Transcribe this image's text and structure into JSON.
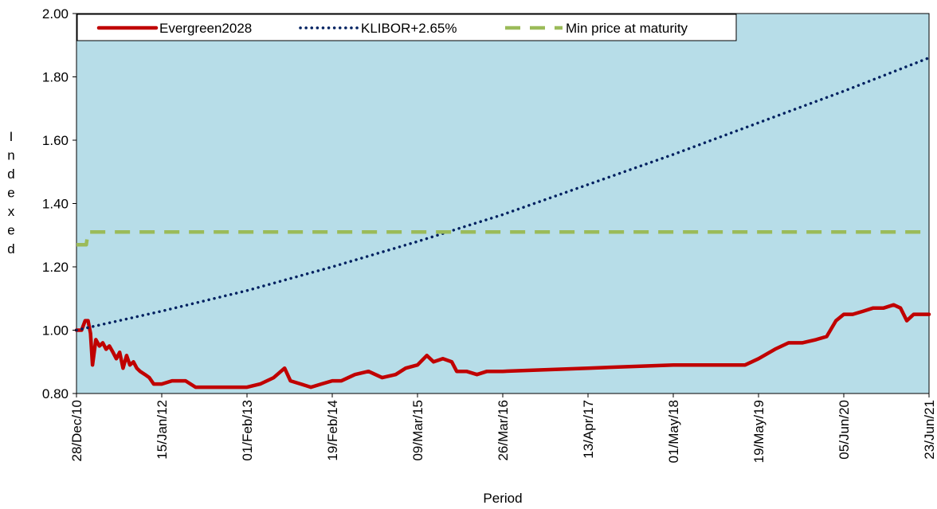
{
  "chart_data": {
    "type": "line",
    "ylabel": "Indexed",
    "xlabel": "Period",
    "ylim": [
      0.8,
      2.0
    ],
    "yticks": [
      "0.80",
      "1.00",
      "1.20",
      "1.40",
      "1.60",
      "1.80",
      "2.00"
    ],
    "xlim": [
      "2010-12-28",
      "2021-06-23"
    ],
    "xticks": [
      {
        "date": "2010-12-28",
        "label": "28/Dec/10"
      },
      {
        "date": "2012-01-15",
        "label": "15/Jan/12"
      },
      {
        "date": "2013-02-01",
        "label": "01/Feb/13"
      },
      {
        "date": "2014-02-19",
        "label": "19/Feb/14"
      },
      {
        "date": "2015-03-09",
        "label": "09/Mar/15"
      },
      {
        "date": "2016-03-26",
        "label": "26/Mar/16"
      },
      {
        "date": "2017-04-13",
        "label": "13/Apr/17"
      },
      {
        "date": "2018-05-01",
        "label": "01/May/18"
      },
      {
        "date": "2019-05-19",
        "label": "19/May/19"
      },
      {
        "date": "2020-06-05",
        "label": "05/Jun/20"
      },
      {
        "date": "2021-06-23",
        "label": "23/Jun/21"
      }
    ],
    "grid": false,
    "background_color": "#b7dde8",
    "legend_position": "top",
    "series": [
      {
        "name": "Evergreen2028",
        "color": "#c00000",
        "style": "solid",
        "points": [
          [
            "2010-12-28",
            1.0
          ],
          [
            "2011-01-20",
            1.0
          ],
          [
            "2011-02-05",
            1.03
          ],
          [
            "2011-02-18",
            1.03
          ],
          [
            "2011-03-01",
            0.99
          ],
          [
            "2011-03-10",
            0.89
          ],
          [
            "2011-03-25",
            0.97
          ],
          [
            "2011-04-10",
            0.95
          ],
          [
            "2011-04-25",
            0.96
          ],
          [
            "2011-05-10",
            0.94
          ],
          [
            "2011-05-25",
            0.95
          ],
          [
            "2011-06-10",
            0.93
          ],
          [
            "2011-06-25",
            0.91
          ],
          [
            "2011-07-10",
            0.93
          ],
          [
            "2011-07-25",
            0.88
          ],
          [
            "2011-08-10",
            0.92
          ],
          [
            "2011-08-25",
            0.89
          ],
          [
            "2011-09-10",
            0.9
          ],
          [
            "2011-09-25",
            0.88
          ],
          [
            "2011-10-10",
            0.87
          ],
          [
            "2011-11-01",
            0.86
          ],
          [
            "2011-11-20",
            0.85
          ],
          [
            "2011-12-10",
            0.83
          ],
          [
            "2012-01-15",
            0.83
          ],
          [
            "2012-03-01",
            0.84
          ],
          [
            "2012-05-01",
            0.84
          ],
          [
            "2012-06-15",
            0.82
          ],
          [
            "2012-09-01",
            0.82
          ],
          [
            "2012-12-01",
            0.82
          ],
          [
            "2013-02-01",
            0.82
          ],
          [
            "2013-04-01",
            0.83
          ],
          [
            "2013-06-01",
            0.85
          ],
          [
            "2013-07-20",
            0.88
          ],
          [
            "2013-08-15",
            0.84
          ],
          [
            "2013-10-01",
            0.83
          ],
          [
            "2013-11-15",
            0.82
          ],
          [
            "2014-01-01",
            0.83
          ],
          [
            "2014-02-19",
            0.84
          ],
          [
            "2014-04-01",
            0.84
          ],
          [
            "2014-06-01",
            0.86
          ],
          [
            "2014-08-01",
            0.87
          ],
          [
            "2014-10-01",
            0.85
          ],
          [
            "2014-12-01",
            0.86
          ],
          [
            "2015-01-15",
            0.88
          ],
          [
            "2015-03-09",
            0.89
          ],
          [
            "2015-04-20",
            0.92
          ],
          [
            "2015-05-20",
            0.9
          ],
          [
            "2015-07-01",
            0.91
          ],
          [
            "2015-08-10",
            0.9
          ],
          [
            "2015-09-01",
            0.87
          ],
          [
            "2015-10-15",
            0.87
          ],
          [
            "2015-12-01",
            0.86
          ],
          [
            "2016-01-15",
            0.87
          ],
          [
            "2016-03-26",
            0.87
          ],
          [
            "2017-04-13",
            0.88
          ],
          [
            "2018-05-01",
            0.89
          ],
          [
            "2019-03-20",
            0.89
          ],
          [
            "2019-05-19",
            0.91
          ],
          [
            "2019-08-01",
            0.94
          ],
          [
            "2019-10-01",
            0.96
          ],
          [
            "2019-12-01",
            0.96
          ],
          [
            "2020-02-01",
            0.97
          ],
          [
            "2020-03-20",
            0.98
          ],
          [
            "2020-05-01",
            1.03
          ],
          [
            "2020-06-05",
            1.05
          ],
          [
            "2020-07-15",
            1.05
          ],
          [
            "2020-09-01",
            1.06
          ],
          [
            "2020-10-15",
            1.07
          ],
          [
            "2020-12-01",
            1.07
          ],
          [
            "2021-01-15",
            1.08
          ],
          [
            "2021-02-15",
            1.07
          ],
          [
            "2021-03-15",
            1.03
          ],
          [
            "2021-04-15",
            1.05
          ],
          [
            "2021-05-15",
            1.05
          ],
          [
            "2021-06-23",
            1.05
          ]
        ]
      },
      {
        "name": "KLIBOR+2.65%",
        "color": "#002060",
        "style": "dotted",
        "points": [
          [
            "2010-12-28",
            1.0
          ],
          [
            "2012-01-15",
            1.06
          ],
          [
            "2013-02-01",
            1.125
          ],
          [
            "2014-02-19",
            1.2
          ],
          [
            "2015-03-09",
            1.28
          ],
          [
            "2016-03-26",
            1.365
          ],
          [
            "2017-04-13",
            1.46
          ],
          [
            "2018-05-01",
            1.555
          ],
          [
            "2019-05-19",
            1.655
          ],
          [
            "2020-06-05",
            1.755
          ],
          [
            "2021-06-23",
            1.86
          ]
        ]
      },
      {
        "name": "Min price at maturity",
        "color": "#9bbb59",
        "style": "dashed",
        "points": [
          [
            "2010-12-28",
            1.27
          ],
          [
            "2011-02-10",
            1.27
          ],
          [
            "2011-02-18",
            1.31
          ],
          [
            "2021-06-23",
            1.31
          ]
        ]
      }
    ]
  }
}
